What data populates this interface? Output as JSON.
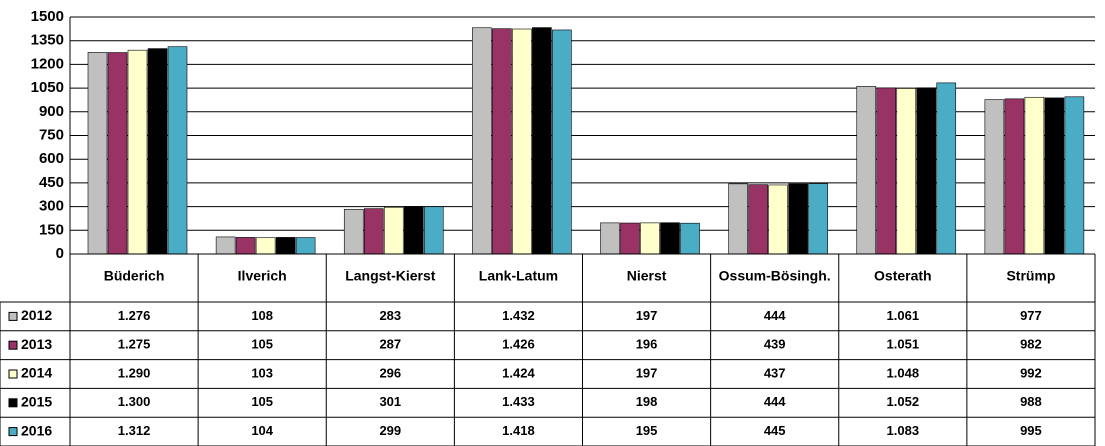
{
  "chart_data": {
    "type": "bar",
    "categories": [
      "Büderich",
      "Ilverich",
      "Langst-Kierst",
      "Lank-Latum",
      "Nierst",
      "Ossum-Bösingh.",
      "Osterath",
      "Strümp"
    ],
    "series": [
      {
        "name": "2012",
        "color": "#c0c0c0",
        "values": [
          1276,
          108,
          283,
          1432,
          197,
          444,
          1061,
          977
        ],
        "value_labels": [
          "1.276",
          "108",
          "283",
          "1.432",
          "197",
          "444",
          "1.061",
          "977"
        ]
      },
      {
        "name": "2013",
        "color": "#993366",
        "values": [
          1275,
          105,
          287,
          1426,
          196,
          439,
          1051,
          982
        ],
        "value_labels": [
          "1.275",
          "105",
          "287",
          "1.426",
          "196",
          "439",
          "1.051",
          "982"
        ]
      },
      {
        "name": "2014",
        "color": "#ffffcc",
        "values": [
          1290,
          103,
          296,
          1424,
          197,
          437,
          1048,
          992
        ],
        "value_labels": [
          "1.290",
          "103",
          "296",
          "1.424",
          "197",
          "437",
          "1.048",
          "992"
        ]
      },
      {
        "name": "2015",
        "color": "#000000",
        "values": [
          1300,
          105,
          301,
          1433,
          198,
          444,
          1052,
          988
        ],
        "value_labels": [
          "1.300",
          "105",
          "301",
          "1.433",
          "198",
          "444",
          "1.052",
          "988"
        ]
      },
      {
        "name": "2016",
        "color": "#4bacc6",
        "values": [
          1312,
          104,
          299,
          1418,
          195,
          445,
          1083,
          995
        ],
        "value_labels": [
          "1.312",
          "104",
          "299",
          "1.418",
          "195",
          "445",
          "1.083",
          "995"
        ]
      }
    ],
    "ylim": [
      0,
      1500
    ],
    "yticks": [
      0,
      150,
      300,
      450,
      600,
      750,
      900,
      1050,
      1200,
      1350,
      1500
    ],
    "grid": true
  }
}
